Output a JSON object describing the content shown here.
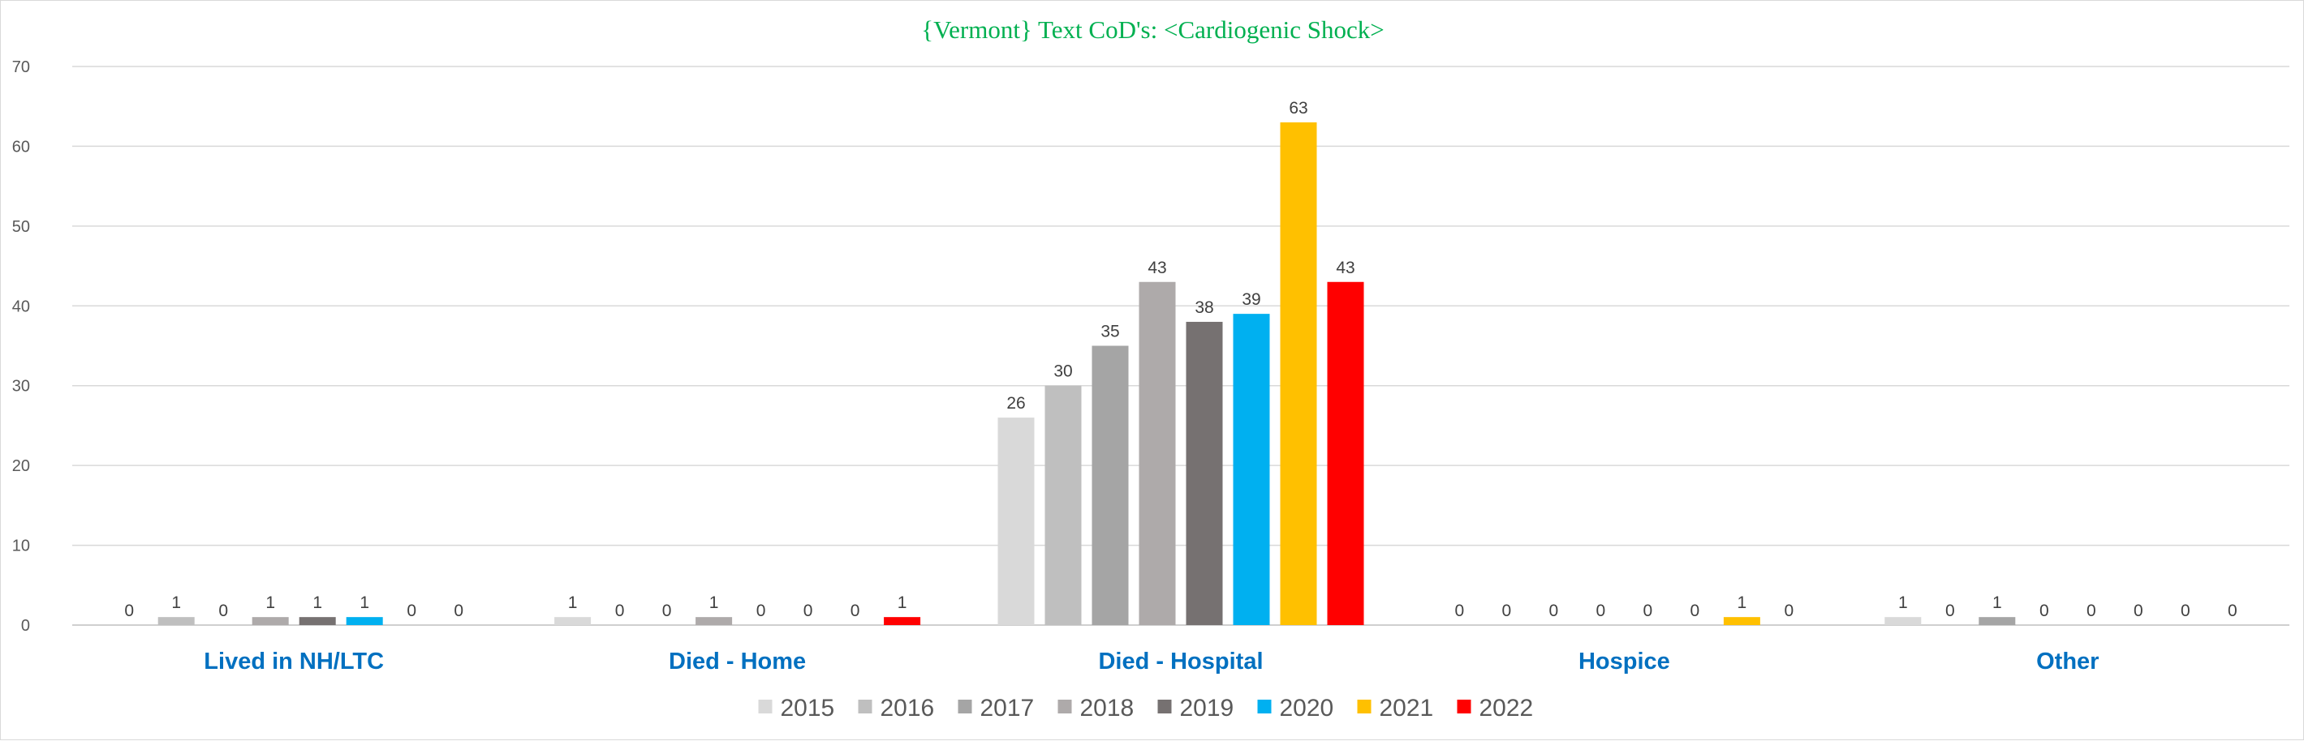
{
  "chart_data": {
    "type": "bar",
    "title": "{Vermont}   Text CoD's: <Cardiogenic  Shock>",
    "title_color": "#00b050",
    "category_label_color": "#0070c0",
    "xlabel": "",
    "ylabel": "",
    "ylim": [
      0,
      70
    ],
    "yticks": [
      "0",
      "10",
      "20",
      "30",
      "40",
      "50",
      "60",
      "70"
    ],
    "grid": true,
    "legend_position": "bottom",
    "categories": [
      "Lived in NH/LTC",
      "Died - Home",
      "Died - Hospital",
      "Hospice",
      "Other"
    ],
    "series": [
      {
        "name": "2015",
        "color": "#d9d9d9",
        "values": [
          0,
          1,
          26,
          0,
          1
        ]
      },
      {
        "name": "2016",
        "color": "#bfbfbf",
        "values": [
          1,
          0,
          30,
          0,
          0
        ]
      },
      {
        "name": "2017",
        "color": "#a5a5a5",
        "values": [
          0,
          0,
          35,
          0,
          1
        ]
      },
      {
        "name": "2018",
        "color": "#aeaaaa",
        "values": [
          1,
          1,
          43,
          0,
          0
        ]
      },
      {
        "name": "2019",
        "color": "#767171",
        "values": [
          1,
          0,
          38,
          0,
          0
        ]
      },
      {
        "name": "2020",
        "color": "#00b0f0",
        "values": [
          1,
          0,
          39,
          0,
          0
        ]
      },
      {
        "name": "2021",
        "color": "#ffc000",
        "values": [
          0,
          0,
          63,
          1,
          0
        ]
      },
      {
        "name": "2022",
        "color": "#ff0000",
        "values": [
          0,
          1,
          43,
          0,
          0
        ]
      }
    ]
  }
}
